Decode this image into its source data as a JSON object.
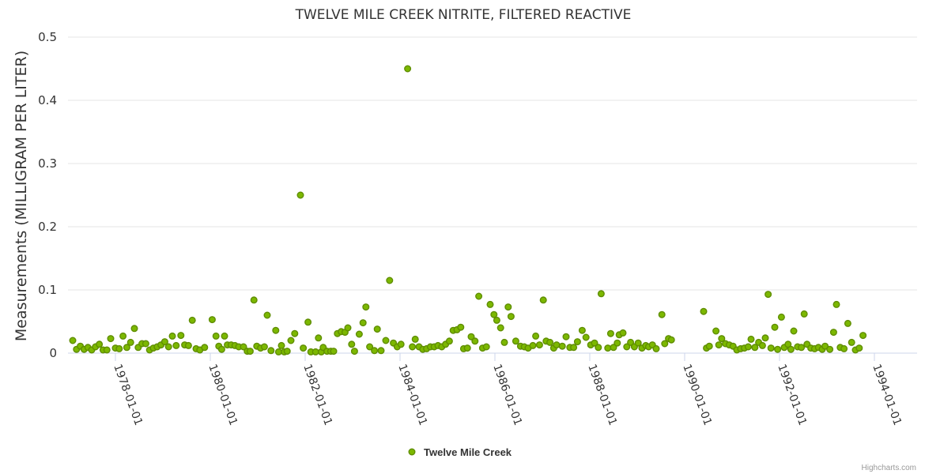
{
  "chart_data": {
    "type": "scatter",
    "title": "TWELVE MILE CREEK NITRITE, FILTERED REACTIVE",
    "xlabel": "",
    "ylabel": "Measurements (MILLIGRAM PER LITER)",
    "ylim": [
      0,
      0.5
    ],
    "yticks": [
      "0",
      "0.1",
      "0.2",
      "0.3",
      "0.4",
      "0.5"
    ],
    "xlim": [
      1977.0,
      1994.9
    ],
    "xticks": [
      {
        "label": "1978-01-01",
        "value": 1978
      },
      {
        "label": "1980-01-01",
        "value": 1980
      },
      {
        "label": "1982-01-01",
        "value": 1982
      },
      {
        "label": "1984-01-01",
        "value": 1984
      },
      {
        "label": "1986-01-01",
        "value": 1986
      },
      {
        "label": "1988-01-01",
        "value": 1988
      },
      {
        "label": "1990-01-01",
        "value": 1990
      },
      {
        "label": "1992-01-01",
        "value": 1992
      },
      {
        "label": "1994-01-01",
        "value": 1994
      }
    ],
    "series": [
      {
        "name": "Twelve Mile Creek",
        "color": "#7cb800",
        "edge_color": "#5f8d00",
        "points": [
          [
            1977.1,
            0.02
          ],
          [
            1977.18,
            0.006
          ],
          [
            1977.26,
            0.011
          ],
          [
            1977.34,
            0.006
          ],
          [
            1977.42,
            0.009
          ],
          [
            1977.5,
            0.005
          ],
          [
            1977.58,
            0.01
          ],
          [
            1977.66,
            0.014
          ],
          [
            1977.74,
            0.005
          ],
          [
            1977.82,
            0.005
          ],
          [
            1977.9,
            0.023
          ],
          [
            1978.0,
            0.008
          ],
          [
            1978.08,
            0.007
          ],
          [
            1978.16,
            0.027
          ],
          [
            1978.24,
            0.009
          ],
          [
            1978.32,
            0.017
          ],
          [
            1978.4,
            0.039
          ],
          [
            1978.48,
            0.009
          ],
          [
            1978.56,
            0.015
          ],
          [
            1978.64,
            0.015
          ],
          [
            1978.72,
            0.005
          ],
          [
            1978.8,
            0.008
          ],
          [
            1978.88,
            0.01
          ],
          [
            1978.96,
            0.013
          ],
          [
            1979.04,
            0.018
          ],
          [
            1979.12,
            0.01
          ],
          [
            1979.2,
            0.027
          ],
          [
            1979.28,
            0.012
          ],
          [
            1979.38,
            0.028
          ],
          [
            1979.46,
            0.013
          ],
          [
            1979.54,
            0.012
          ],
          [
            1979.62,
            0.052
          ],
          [
            1979.7,
            0.007
          ],
          [
            1979.78,
            0.005
          ],
          [
            1979.88,
            0.009
          ],
          [
            1980.04,
            0.053
          ],
          [
            1980.12,
            0.027
          ],
          [
            1980.18,
            0.011
          ],
          [
            1980.24,
            0.006
          ],
          [
            1980.3,
            0.027
          ],
          [
            1980.36,
            0.013
          ],
          [
            1980.44,
            0.013
          ],
          [
            1980.52,
            0.012
          ],
          [
            1980.6,
            0.01
          ],
          [
            1980.7,
            0.01
          ],
          [
            1980.78,
            0.003
          ],
          [
            1980.84,
            0.003
          ],
          [
            1980.92,
            0.084
          ],
          [
            1980.98,
            0.011
          ],
          [
            1981.06,
            0.008
          ],
          [
            1981.14,
            0.01
          ],
          [
            1981.2,
            0.06
          ],
          [
            1981.28,
            0.004
          ],
          [
            1981.38,
            0.036
          ],
          [
            1981.44,
            0.002
          ],
          [
            1981.5,
            0.012
          ],
          [
            1981.56,
            0.002
          ],
          [
            1981.62,
            0.003
          ],
          [
            1981.7,
            0.02
          ],
          [
            1981.78,
            0.031
          ],
          [
            1981.9,
            0.25
          ],
          [
            1981.96,
            0.008
          ],
          [
            1982.06,
            0.049
          ],
          [
            1982.12,
            0.002
          ],
          [
            1982.22,
            0.002
          ],
          [
            1982.28,
            0.024
          ],
          [
            1982.34,
            0.002
          ],
          [
            1982.38,
            0.009
          ],
          [
            1982.46,
            0.003
          ],
          [
            1982.54,
            0.003
          ],
          [
            1982.6,
            0.003
          ],
          [
            1982.68,
            0.031
          ],
          [
            1982.76,
            0.034
          ],
          [
            1982.84,
            0.033
          ],
          [
            1982.9,
            0.04
          ],
          [
            1982.98,
            0.014
          ],
          [
            1983.04,
            0.003
          ],
          [
            1983.14,
            0.03
          ],
          [
            1983.22,
            0.048
          ],
          [
            1983.28,
            0.073
          ],
          [
            1983.36,
            0.01
          ],
          [
            1983.46,
            0.004
          ],
          [
            1983.52,
            0.038
          ],
          [
            1983.6,
            0.004
          ],
          [
            1983.7,
            0.02
          ],
          [
            1983.78,
            0.115
          ],
          [
            1983.86,
            0.016
          ],
          [
            1983.94,
            0.01
          ],
          [
            1984.02,
            0.014
          ],
          [
            1984.16,
            0.45
          ],
          [
            1984.26,
            0.01
          ],
          [
            1984.32,
            0.022
          ],
          [
            1984.4,
            0.01
          ],
          [
            1984.48,
            0.006
          ],
          [
            1984.56,
            0.007
          ],
          [
            1984.64,
            0.01
          ],
          [
            1984.72,
            0.01
          ],
          [
            1984.8,
            0.012
          ],
          [
            1984.88,
            0.01
          ],
          [
            1984.96,
            0.014
          ],
          [
            1985.04,
            0.019
          ],
          [
            1985.12,
            0.036
          ],
          [
            1985.2,
            0.037
          ],
          [
            1985.28,
            0.041
          ],
          [
            1985.34,
            0.007
          ],
          [
            1985.42,
            0.008
          ],
          [
            1985.5,
            0.026
          ],
          [
            1985.58,
            0.019
          ],
          [
            1985.66,
            0.09
          ],
          [
            1985.74,
            0.008
          ],
          [
            1985.82,
            0.01
          ],
          [
            1985.9,
            0.077
          ],
          [
            1985.98,
            0.061
          ],
          [
            1986.04,
            0.052
          ],
          [
            1986.12,
            0.04
          ],
          [
            1986.2,
            0.017
          ],
          [
            1986.28,
            0.073
          ],
          [
            1986.34,
            0.058
          ],
          [
            1986.44,
            0.019
          ],
          [
            1986.54,
            0.011
          ],
          [
            1986.62,
            0.01
          ],
          [
            1986.7,
            0.008
          ],
          [
            1986.8,
            0.012
          ],
          [
            1986.86,
            0.027
          ],
          [
            1986.94,
            0.013
          ],
          [
            1987.02,
            0.084
          ],
          [
            1987.08,
            0.019
          ],
          [
            1987.16,
            0.017
          ],
          [
            1987.24,
            0.008
          ],
          [
            1987.3,
            0.013
          ],
          [
            1987.42,
            0.011
          ],
          [
            1987.5,
            0.026
          ],
          [
            1987.58,
            0.009
          ],
          [
            1987.66,
            0.009
          ],
          [
            1987.74,
            0.018
          ],
          [
            1987.84,
            0.036
          ],
          [
            1987.92,
            0.025
          ],
          [
            1988.02,
            0.013
          ],
          [
            1988.1,
            0.016
          ],
          [
            1988.18,
            0.009
          ],
          [
            1988.24,
            0.094
          ],
          [
            1988.38,
            0.008
          ],
          [
            1988.44,
            0.031
          ],
          [
            1988.5,
            0.009
          ],
          [
            1988.58,
            0.016
          ],
          [
            1988.62,
            0.029
          ],
          [
            1988.7,
            0.032
          ],
          [
            1988.78,
            0.01
          ],
          [
            1988.86,
            0.017
          ],
          [
            1988.94,
            0.01
          ],
          [
            1989.02,
            0.016
          ],
          [
            1989.1,
            0.008
          ],
          [
            1989.18,
            0.012
          ],
          [
            1989.24,
            0.01
          ],
          [
            1989.32,
            0.013
          ],
          [
            1989.4,
            0.007
          ],
          [
            1989.52,
            0.061
          ],
          [
            1989.58,
            0.015
          ],
          [
            1989.66,
            0.023
          ],
          [
            1989.72,
            0.021
          ],
          [
            1990.4,
            0.066
          ],
          [
            1990.46,
            0.008
          ],
          [
            1990.52,
            0.011
          ],
          [
            1990.66,
            0.035
          ],
          [
            1990.72,
            0.013
          ],
          [
            1990.78,
            0.023
          ],
          [
            1990.86,
            0.015
          ],
          [
            1990.94,
            0.013
          ],
          [
            1991.02,
            0.011
          ],
          [
            1991.1,
            0.005
          ],
          [
            1991.18,
            0.007
          ],
          [
            1991.26,
            0.008
          ],
          [
            1991.34,
            0.01
          ],
          [
            1991.4,
            0.022
          ],
          [
            1991.48,
            0.009
          ],
          [
            1991.56,
            0.017
          ],
          [
            1991.64,
            0.012
          ],
          [
            1991.7,
            0.024
          ],
          [
            1991.76,
            0.093
          ],
          [
            1991.82,
            0.008
          ],
          [
            1991.9,
            0.041
          ],
          [
            1991.96,
            0.006
          ],
          [
            1992.04,
            0.057
          ],
          [
            1992.1,
            0.009
          ],
          [
            1992.18,
            0.014
          ],
          [
            1992.24,
            0.006
          ],
          [
            1992.3,
            0.035
          ],
          [
            1992.38,
            0.01
          ],
          [
            1992.46,
            0.009
          ],
          [
            1992.52,
            0.062
          ],
          [
            1992.58,
            0.014
          ],
          [
            1992.66,
            0.008
          ],
          [
            1992.74,
            0.007
          ],
          [
            1992.82,
            0.009
          ],
          [
            1992.9,
            0.006
          ],
          [
            1992.96,
            0.011
          ],
          [
            1993.06,
            0.006
          ],
          [
            1993.14,
            0.033
          ],
          [
            1993.2,
            0.077
          ],
          [
            1993.28,
            0.009
          ],
          [
            1993.36,
            0.007
          ],
          [
            1993.44,
            0.047
          ],
          [
            1993.52,
            0.017
          ],
          [
            1993.6,
            0.005
          ],
          [
            1993.68,
            0.008
          ],
          [
            1993.76,
            0.028
          ]
        ]
      }
    ],
    "legend": "bottom-center"
  },
  "credits": "Highcharts.com"
}
